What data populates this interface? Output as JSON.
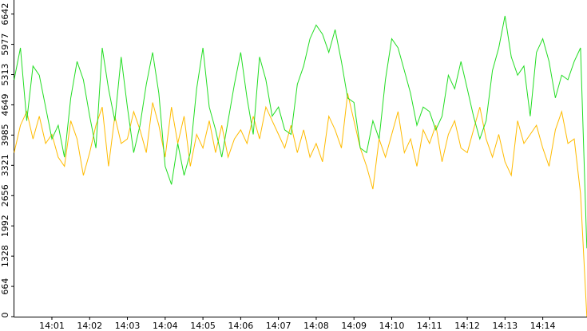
{
  "chart_data": {
    "type": "line",
    "categories": [
      null,
      null,
      null,
      null,
      null,
      null,
      "14:01",
      null,
      null,
      null,
      null,
      null,
      "14:02",
      null,
      null,
      null,
      null,
      null,
      "14:03",
      null,
      null,
      null,
      null,
      null,
      "14:04",
      null,
      null,
      null,
      null,
      null,
      "14:05",
      null,
      null,
      null,
      null,
      null,
      "14:06",
      null,
      null,
      null,
      null,
      null,
      "14:07",
      null,
      null,
      null,
      null,
      null,
      "14:08",
      null,
      null,
      null,
      null,
      null,
      "14:09",
      null,
      null,
      null,
      null,
      null,
      "14:10",
      null,
      null,
      null,
      null,
      null,
      "14:11",
      null,
      null,
      null,
      null,
      null,
      "14:12",
      null,
      null,
      null,
      null,
      null,
      "14:13",
      null,
      null,
      null,
      null,
      null,
      "14:14",
      null,
      null,
      null,
      null,
      null,
      null,
      null
    ],
    "series": [
      {
        "color": "#22dd22",
        "values": [
          5200,
          5900,
          4300,
          5500,
          5300,
          4600,
          3900,
          4200,
          3500,
          4800,
          5600,
          5200,
          4400,
          3700,
          5900,
          5000,
          4300,
          5700,
          4600,
          3600,
          4200,
          5100,
          5800,
          4900,
          3300,
          2900,
          3800,
          3100,
          3600,
          5000,
          5900,
          4600,
          4100,
          3500,
          4300,
          5100,
          5800,
          4800,
          4000,
          5700,
          5200,
          4400,
          4600,
          4100,
          4000,
          5100,
          5500,
          6100,
          6400,
          6200,
          5800,
          6300,
          5600,
          4800,
          4700,
          3700,
          3600,
          4300,
          3900,
          5200,
          6100,
          5900,
          5400,
          4900,
          4200,
          4600,
          4500,
          4100,
          4400,
          5300,
          5000,
          5600,
          5000,
          4400,
          3900,
          4300,
          5400,
          5900,
          6600,
          5700,
          5300,
          5500,
          4400,
          5800,
          6100,
          5600,
          4800,
          5300,
          5200,
          5600,
          5900,
          1500
        ]
      },
      {
        "color": "#ffbb00",
        "values": [
          3600,
          4200,
          4500,
          3900,
          4400,
          3800,
          4000,
          3500,
          3300,
          4300,
          3900,
          3100,
          3600,
          4200,
          4600,
          3300,
          4400,
          3800,
          3900,
          4500,
          4100,
          3600,
          4700,
          4200,
          3500,
          4600,
          3800,
          4400,
          3300,
          4000,
          3700,
          4300,
          3600,
          4200,
          3500,
          3900,
          4100,
          3800,
          4400,
          3900,
          4600,
          4300,
          4000,
          3700,
          4200,
          3600,
          4100,
          3500,
          3800,
          3400,
          4400,
          4100,
          3700,
          4900,
          4300,
          3700,
          3300,
          2800,
          3900,
          3500,
          4000,
          4500,
          3600,
          3900,
          3300,
          4100,
          3800,
          4200,
          3400,
          4000,
          4300,
          3700,
          3600,
          4100,
          4600,
          3900,
          3500,
          4000,
          3400,
          3100,
          4300,
          3800,
          4000,
          4200,
          3700,
          3300,
          4100,
          4500,
          3800,
          3900,
          2700,
          0
        ]
      }
    ],
    "ylim": [
      0,
      6950
    ],
    "yticks": [
      0,
      664,
      1328,
      1992,
      2656,
      3321,
      3985,
      4649,
      5313,
      5977,
      6642
    ]
  }
}
